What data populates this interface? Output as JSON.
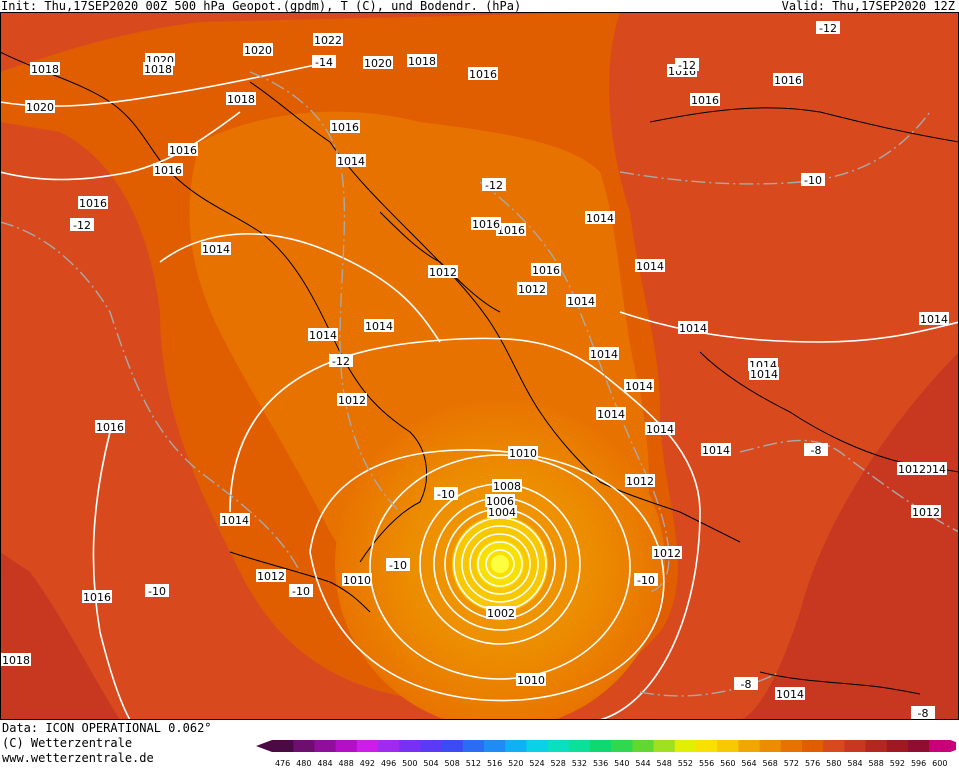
{
  "header": {
    "init": "Init: Thu,17SEP2020 00Z",
    "title": "500 hPa Geopot.(gpdm), T (C), und Bodendr. (hPa)",
    "valid": "Valid: Thu,17SEP2020 12Z"
  },
  "footer": {
    "data_line": "Data: ICON OPERATIONAL 0.062°",
    "copyright": "(C) Wetterzentrale",
    "url": "www.wetterzentrale.de"
  },
  "legend": {
    "values": [
      "476",
      "480",
      "484",
      "488",
      "492",
      "496",
      "500",
      "504",
      "508",
      "512",
      "516",
      "520",
      "524",
      "528",
      "532",
      "536",
      "540",
      "544",
      "548",
      "552",
      "556",
      "560",
      "564",
      "568",
      "572",
      "576",
      "580",
      "584",
      "588",
      "592",
      "596",
      "600"
    ],
    "colors": [
      "#4b0a44",
      "#6e0e6e",
      "#900e9c",
      "#b40ec8",
      "#cc1ee8",
      "#a02af0",
      "#7830f4",
      "#5a3af4",
      "#3c4cf4",
      "#2a6cf4",
      "#1e8cf4",
      "#10b0f4",
      "#0ad0e8",
      "#0ae0c0",
      "#0ae098",
      "#10d870",
      "#30d850",
      "#60d830",
      "#a0e020",
      "#e0f000",
      "#f8e000",
      "#f8c800",
      "#f0a800",
      "#ec8c00",
      "#e87200",
      "#e05e00",
      "#d84a1e",
      "#c83820",
      "#b42620",
      "#a01820",
      "#900c30",
      "#c8007a"
    ]
  },
  "map": {
    "pressure_labels": [
      {
        "text": "1018"
      },
      {
        "text": "1020"
      },
      {
        "text": "1020"
      },
      {
        "text": "1018"
      },
      {
        "text": "1020"
      },
      {
        "text": "1022"
      },
      {
        "text": "1020"
      },
      {
        "text": "1018"
      },
      {
        "text": "1016"
      },
      {
        "text": "1016"
      },
      {
        "text": "1016"
      },
      {
        "text": "1016"
      },
      {
        "text": "1018"
      },
      {
        "text": "1016"
      },
      {
        "text": "1016"
      },
      {
        "text": "1016"
      },
      {
        "text": "1014"
      },
      {
        "text": "1016"
      },
      {
        "text": "1014"
      },
      {
        "text": "1016"
      },
      {
        "text": "1016"
      },
      {
        "text": "1014"
      },
      {
        "text": "1012"
      },
      {
        "text": "1016"
      },
      {
        "text": "1012"
      },
      {
        "text": "1014"
      },
      {
        "text": "1014"
      },
      {
        "text": "1014"
      },
      {
        "text": "1014"
      },
      {
        "text": "1014"
      },
      {
        "text": "1014"
      },
      {
        "text": "1014"
      },
      {
        "text": "1014"
      },
      {
        "text": "1014"
      },
      {
        "text": "1012"
      },
      {
        "text": "1014"
      },
      {
        "text": "1016"
      },
      {
        "text": "1014"
      },
      {
        "text": "1014"
      },
      {
        "text": "1010"
      },
      {
        "text": "1014"
      },
      {
        "text": "1008"
      },
      {
        "text": "1006"
      },
      {
        "text": "1004"
      },
      {
        "text": "1012"
      },
      {
        "text": "1014"
      },
      {
        "text": "1012"
      },
      {
        "text": "1012"
      },
      {
        "text": "1012"
      },
      {
        "text": "1010"
      },
      {
        "text": "1016"
      },
      {
        "text": "1002"
      },
      {
        "text": "1018"
      },
      {
        "text": "1010"
      },
      {
        "text": "1014"
      },
      {
        "text": "1012"
      },
      {
        "text": "1014"
      }
    ],
    "temp_labels": [
      {
        "text": "-12"
      },
      {
        "text": "-14"
      },
      {
        "text": "-12"
      },
      {
        "text": "-12"
      },
      {
        "text": "-10"
      },
      {
        "text": "-12"
      },
      {
        "text": "-12"
      },
      {
        "text": "-10"
      },
      {
        "text": "-8"
      },
      {
        "text": "-10"
      },
      {
        "text": "-10"
      },
      {
        "text": "-10"
      },
      {
        "text": "-10"
      },
      {
        "text": "-8"
      },
      {
        "text": "-8"
      }
    ]
  }
}
